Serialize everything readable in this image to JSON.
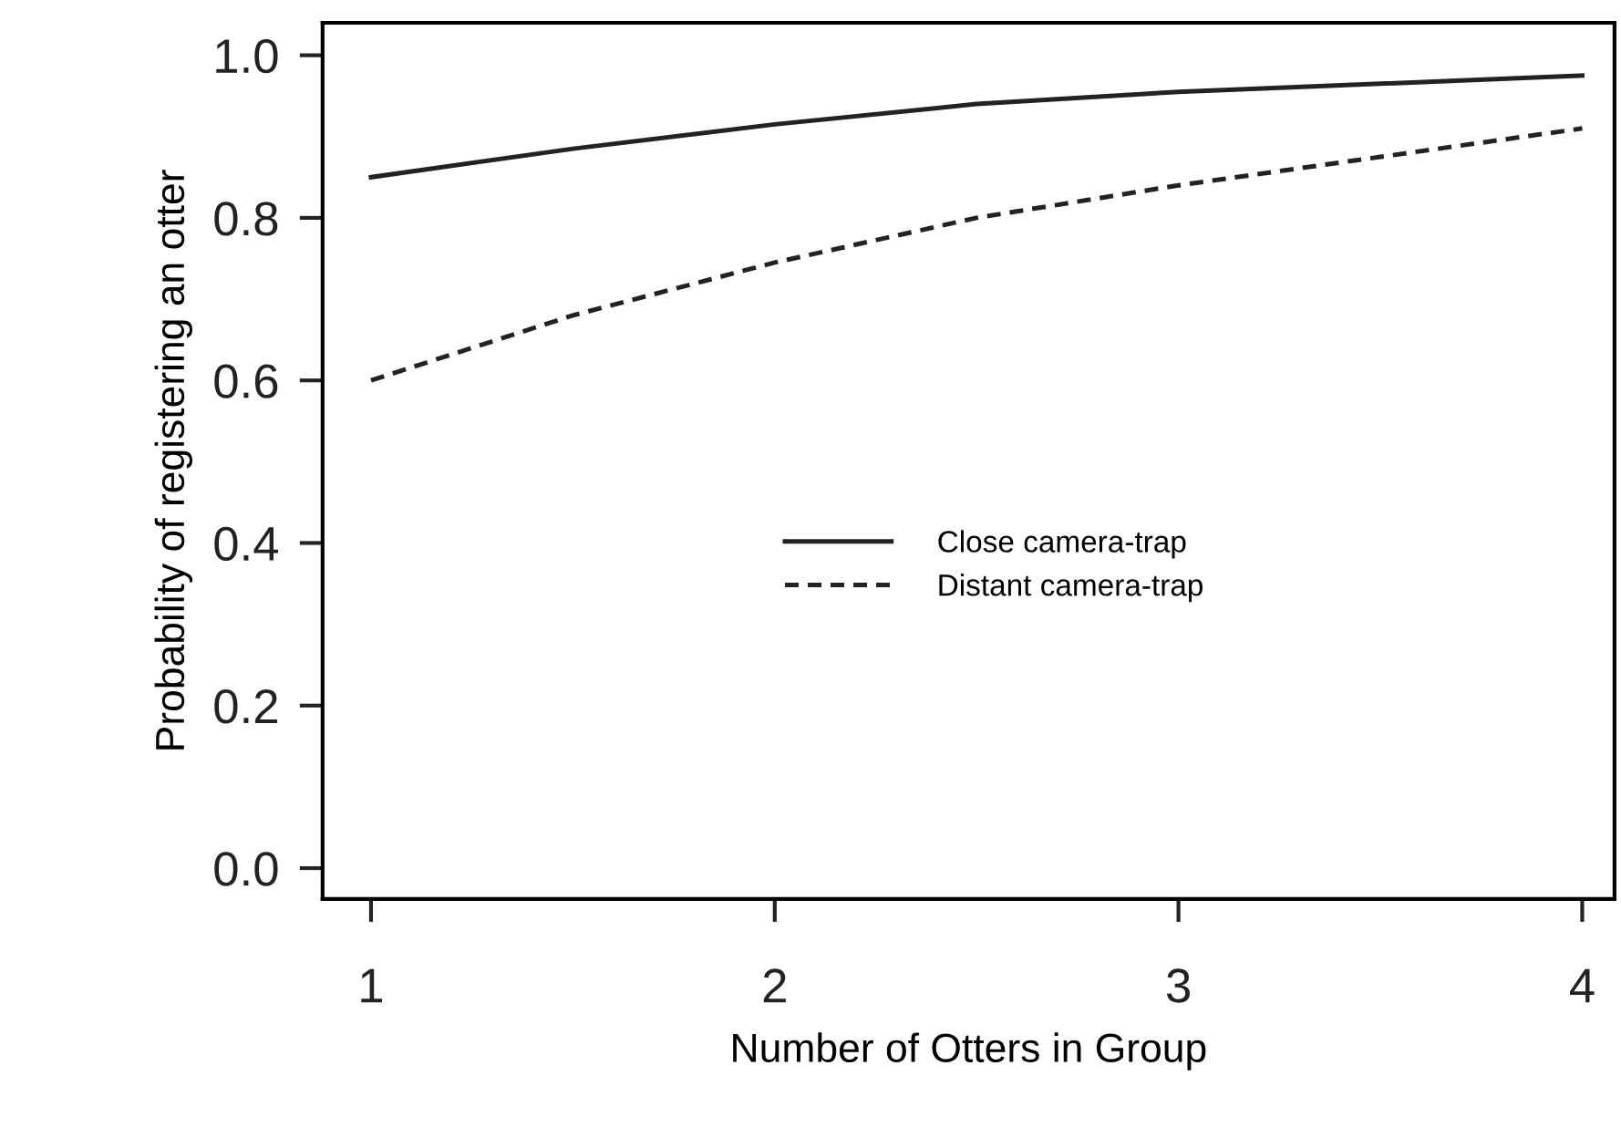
{
  "chart_data": {
    "type": "line",
    "xlabel": "Number of Otters in Group",
    "ylabel": "Probability of registering an otter",
    "x": [
      1,
      1.5,
      2,
      2.5,
      3,
      3.5,
      4
    ],
    "series": [
      {
        "name": "Close camera-trap",
        "color": "#222222",
        "line_style": "solid",
        "values": [
          0.85,
          0.885,
          0.915,
          0.94,
          0.955,
          0.965,
          0.975
        ]
      },
      {
        "name": "Distant camera-trap",
        "color": "#222222",
        "line_style": "dashed",
        "values": [
          0.6,
          0.68,
          0.745,
          0.8,
          0.84,
          0.875,
          0.91
        ]
      }
    ],
    "xlim": [
      0.88,
      4.08
    ],
    "ylim": [
      -0.038,
      1.04
    ],
    "xticks": [
      1,
      2,
      3,
      4
    ],
    "yticks": [
      {
        "value": 0,
        "label": "0.0"
      },
      0.2,
      0.4,
      0.6,
      0.8,
      {
        "value": 1,
        "label": "1.0"
      }
    ],
    "grid": false,
    "legend": "center",
    "marker": "none"
  }
}
